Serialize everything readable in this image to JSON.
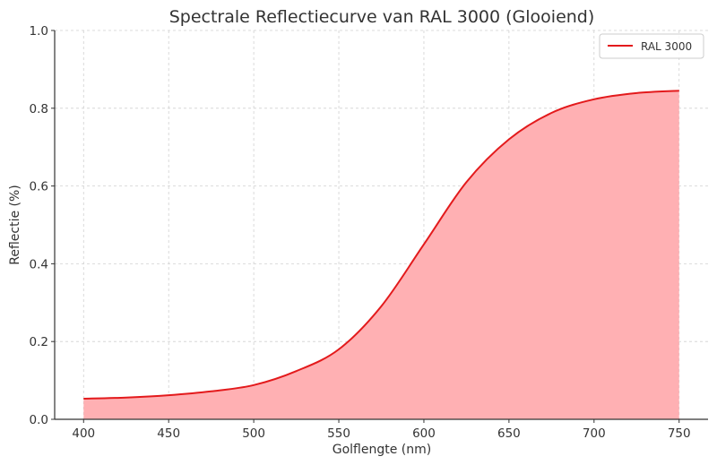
{
  "chart_data": {
    "type": "area",
    "title": "Spectrale Reflectiecurve van RAL 3000 (Glooiend)",
    "xlabel": "Golflengte (nm)",
    "ylabel": "Reflectie (%)",
    "xlim": [
      383,
      767
    ],
    "ylim": [
      0.0,
      1.0
    ],
    "x_ticks": [
      400,
      450,
      500,
      550,
      600,
      650,
      700,
      750
    ],
    "x_tick_labels": [
      "400",
      "450",
      "500",
      "550",
      "600",
      "650",
      "700",
      "750"
    ],
    "y_ticks": [
      0.0,
      0.2,
      0.4,
      0.6,
      0.8,
      1.0
    ],
    "y_tick_labels": [
      "0.0",
      "0.2",
      "0.4",
      "0.6",
      "0.8",
      "1.0"
    ],
    "grid": true,
    "legend": {
      "position": "upper right",
      "entries": [
        "RAL 3000"
      ]
    },
    "series": [
      {
        "name": "RAL 3000",
        "color": "#e31a1c",
        "fill_color": "#ffb0b3",
        "x": [
          400,
          425,
          450,
          475,
          500,
          525,
          550,
          575,
          600,
          625,
          650,
          675,
          700,
          725,
          750
        ],
        "values": [
          0.053,
          0.056,
          0.062,
          0.072,
          0.088,
          0.124,
          0.18,
          0.291,
          0.45,
          0.61,
          0.72,
          0.788,
          0.823,
          0.839,
          0.845
        ]
      }
    ]
  },
  "colors": {
    "line": "#e31a1c",
    "fill": "#ffb0b3",
    "grid": "#d0d0d0",
    "axis": "#333333"
  }
}
